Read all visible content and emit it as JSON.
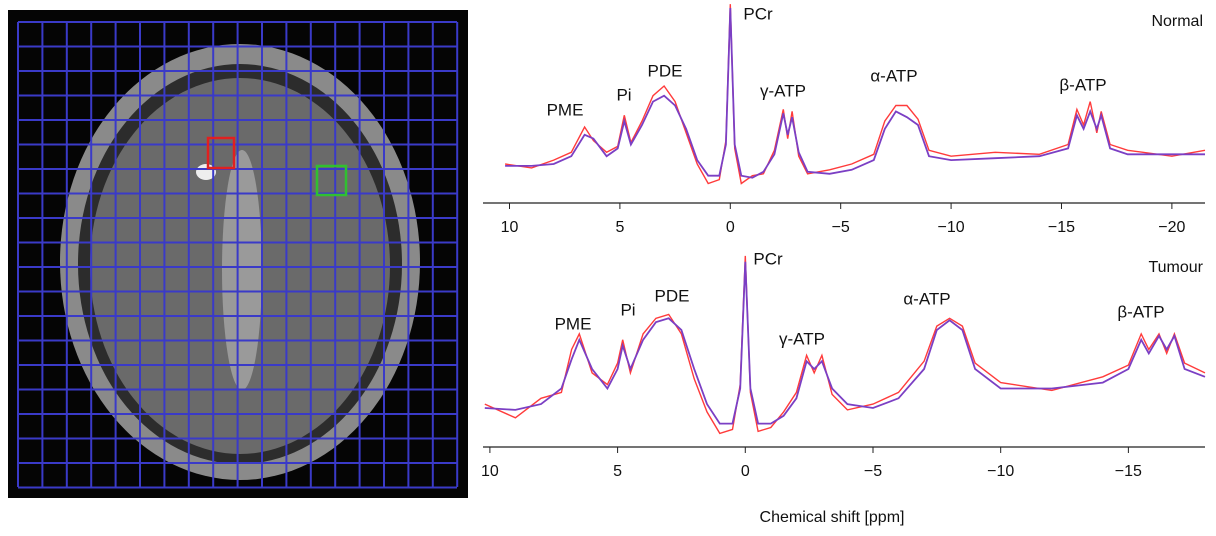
{
  "chart_data": [
    {
      "type": "line",
      "title": "Normal",
      "annotations": [
        "PME",
        "Pi",
        "PDE",
        "PCr",
        "γ-ATP",
        "α-ATP",
        "β-ATP"
      ],
      "x": [
        10.2,
        9,
        8,
        7.2,
        6.6,
        6.2,
        5.6,
        5.1,
        4.8,
        4.5,
        4,
        3.5,
        3,
        2.5,
        2,
        1.5,
        1,
        0.5,
        0.2,
        0,
        -0.2,
        -0.5,
        -1,
        -1.5,
        -2,
        -2.4,
        -2.6,
        -2.8,
        -3.1,
        -3.5,
        -4.5,
        -5.5,
        -6.5,
        -7,
        -7.5,
        -8,
        -8.5,
        -9,
        -10,
        -12,
        -14,
        -15.3,
        -15.7,
        -16,
        -16.3,
        -16.6,
        -16.8,
        -17.2,
        -18,
        -20,
        -21.5
      ],
      "series": [
        {
          "color": "#ff3b3b",
          "values": [
            20,
            18,
            22,
            26,
            39,
            32,
            26,
            29,
            45,
            31,
            42,
            55,
            60,
            52,
            36,
            20,
            10,
            12,
            32,
            102,
            28,
            10,
            14,
            15,
            27,
            48,
            33,
            47,
            24,
            15,
            17,
            20,
            25,
            42,
            50,
            50,
            43,
            27,
            24,
            26,
            25,
            30,
            48,
            40,
            52,
            36,
            47,
            30,
            27,
            24,
            27
          ]
        },
        {
          "color": "#7b3fc4",
          "values": [
            19,
            19,
            20,
            24,
            35,
            33,
            24,
            28,
            42,
            30,
            40,
            52,
            55,
            50,
            38,
            22,
            14,
            14,
            30,
            100,
            30,
            14,
            13,
            16,
            25,
            46,
            35,
            44,
            26,
            16,
            15,
            17,
            22,
            38,
            47,
            44,
            40,
            24,
            22,
            23,
            24,
            28,
            45,
            38,
            47,
            38,
            45,
            28,
            25,
            25,
            25
          ]
        }
      ],
      "xlim": [
        11.2,
        -21.5
      ],
      "ylim": [
        0,
        100
      ],
      "xticks": [
        10,
        5,
        0,
        {
          "value": -5,
          "label": "−5"
        },
        {
          "value": -10,
          "label": "−10"
        },
        {
          "value": -15,
          "label": "−15"
        },
        {
          "value": -20,
          "label": "−20"
        }
      ]
    },
    {
      "type": "line",
      "title": "Tumour",
      "xlabel": "Chemical shift [ppm]",
      "annotations": [
        "PME",
        "Pi",
        "PDE",
        "PCr",
        "γ-ATP",
        "α-ATP",
        "β-ATP"
      ],
      "x": [
        10.2,
        9,
        8,
        7.2,
        6.8,
        6.5,
        6,
        5.4,
        5,
        4.8,
        4.5,
        4,
        3.5,
        3,
        2.5,
        2,
        1.5,
        1,
        0.5,
        0.2,
        0,
        -0.2,
        -0.5,
        -1,
        -1.5,
        -2,
        -2.4,
        -2.7,
        -3,
        -3.4,
        -4,
        -5,
        -6,
        -7,
        -7.5,
        -8,
        -8.5,
        -9,
        -10,
        -12,
        -14,
        -15,
        -15.5,
        -15.8,
        -16.2,
        -16.5,
        -16.8,
        -17.2,
        -18
      ],
      "series": [
        {
          "color": "#ff3b3b",
          "values": [
            22,
            15,
            25,
            28,
            50,
            58,
            38,
            32,
            43,
            55,
            38,
            58,
            66,
            68,
            58,
            35,
            18,
            7,
            9,
            32,
            98,
            28,
            8,
            10,
            18,
            28,
            47,
            38,
            47,
            27,
            19,
            22,
            28,
            44,
            62,
            66,
            62,
            43,
            33,
            29,
            36,
            42,
            58,
            50,
            58,
            48,
            58,
            43,
            38
          ]
        },
        {
          "color": "#7b3fc4",
          "values": [
            20,
            19,
            22,
            30,
            45,
            55,
            40,
            30,
            40,
            52,
            40,
            55,
            64,
            66,
            60,
            40,
            22,
            12,
            12,
            30,
            95,
            30,
            12,
            12,
            16,
            25,
            44,
            40,
            44,
            30,
            22,
            20,
            25,
            40,
            60,
            65,
            60,
            40,
            30,
            30,
            33,
            40,
            55,
            48,
            57,
            50,
            57,
            40,
            36
          ]
        }
      ],
      "xlim": [
        10.27,
        -18.0
      ],
      "ylim": [
        0,
        100
      ],
      "xticks": [
        10,
        5,
        0,
        {
          "value": -5,
          "label": "−5"
        },
        {
          "value": -10,
          "label": "−10"
        },
        {
          "value": -15,
          "label": "−15"
        }
      ]
    }
  ]
}
